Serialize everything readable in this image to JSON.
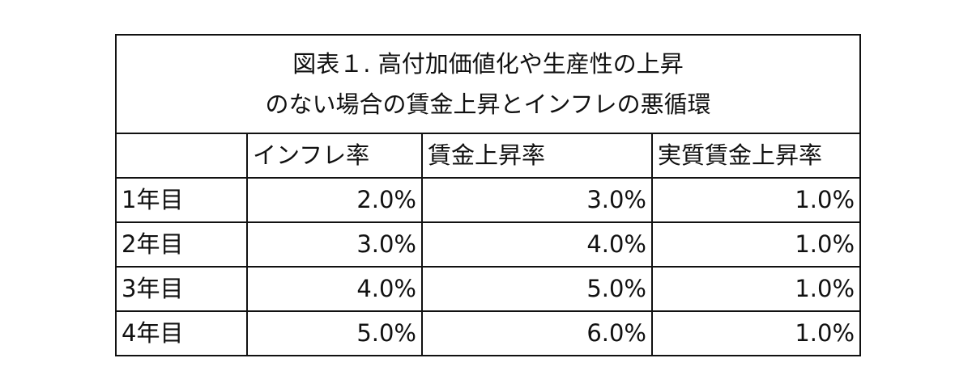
{
  "table": {
    "title_lines": [
      "図表１. 高付加価値化や生産性の上昇",
      "のない場合の賃金上昇とインフレの悪循環"
    ],
    "headers": [
      "",
      "インフレ率",
      "賃金上昇率",
      "実質賃金上昇率"
    ],
    "rows": [
      {
        "label": "1年目",
        "inflation": "2.0%",
        "wage": "3.0%",
        "real_wage": "1.0%"
      },
      {
        "label": "2年目",
        "inflation": "3.0%",
        "wage": "4.0%",
        "real_wage": "1.0%"
      },
      {
        "label": "3年目",
        "inflation": "4.0%",
        "wage": "5.0%",
        "real_wage": "1.0%"
      },
      {
        "label": "4年目",
        "inflation": "5.0%",
        "wage": "6.0%",
        "real_wage": "1.0%"
      }
    ]
  }
}
